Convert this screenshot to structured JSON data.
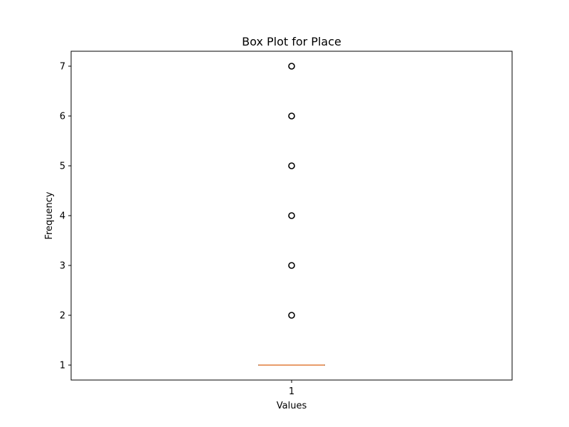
{
  "chart_data": {
    "type": "box",
    "title": "Box Plot for Place",
    "xlabel": "Values",
    "ylabel": "Frequency",
    "categories": [
      "1"
    ],
    "ylim": [
      0.7,
      7.3
    ],
    "yticks": [
      1,
      2,
      3,
      4,
      5,
      6,
      7
    ],
    "grid": false,
    "boxes": [
      {
        "category": "1",
        "min": 1,
        "q1": 1,
        "median": 1,
        "q3": 1,
        "max": 1,
        "outliers": [
          2,
          3,
          4,
          5,
          6,
          7
        ]
      }
    ],
    "colors": {
      "box": "#000000",
      "median": "#e07b39",
      "outlier_edge": "#000000"
    }
  }
}
